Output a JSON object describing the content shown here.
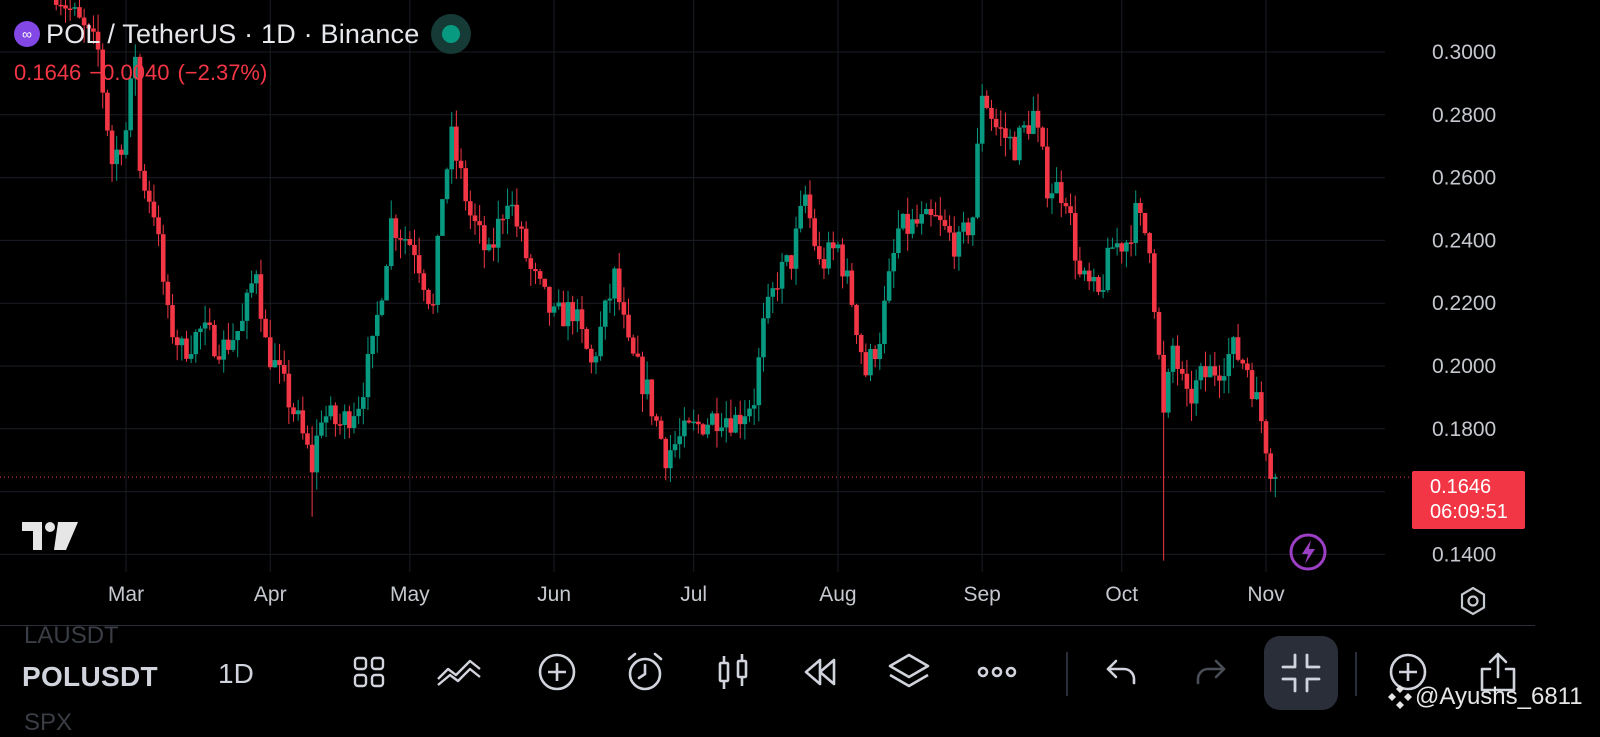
{
  "header": {
    "title": "POL / TetherUS · 1D · Binance",
    "last": "0.1646",
    "change": "−0.0040",
    "change_pct": "(−2.37%)"
  },
  "price_tag": {
    "price": "0.1646",
    "countdown": "06:09:51"
  },
  "colors": {
    "up": "#089981",
    "down": "#f23645",
    "bg": "#000000",
    "grid": "#1a1d24"
  },
  "toolbar": {
    "prev_symbol": "LAUSDT",
    "symbol": "POLUSDT",
    "next_symbol": "SPX",
    "interval": "1D",
    "buttons": [
      "grid-layout-icon",
      "indicators-icon",
      "add-icon",
      "alert-icon",
      "candle-style-icon",
      "replay-icon",
      "layers-icon",
      "more-icon",
      "undo-icon",
      "redo-icon",
      "collapse-fullscreen-icon",
      "zoom-in-icon",
      "share-icon"
    ]
  },
  "watermark": "@Ayushs_6811",
  "chart_data": {
    "type": "candlestick",
    "symbol": "POLUSDT",
    "interval": "1D",
    "y_ticks": [
      "0.3000",
      "0.2800",
      "0.2600",
      "0.2400",
      "0.2200",
      "0.2000",
      "0.1800",
      "0.1400"
    ],
    "ylim": [
      0.14,
      0.3
    ],
    "x_ticks": [
      "Mar",
      "Apr",
      "May",
      "Jun",
      "Jul",
      "Aug",
      "Sep",
      "Oct",
      "Nov"
    ],
    "last_price": 0.1646,
    "anchors": [
      [
        "02-15",
        0.32
      ],
      [
        "02-24",
        0.3
      ],
      [
        "02-27",
        0.265
      ],
      [
        "03-01",
        0.275
      ],
      [
        "03-03",
        0.3
      ],
      [
        "03-04",
        0.262
      ],
      [
        "03-07",
        0.25
      ],
      [
        "03-10",
        0.215
      ],
      [
        "03-13",
        0.205
      ],
      [
        "03-17",
        0.211
      ],
      [
        "03-22",
        0.206
      ],
      [
        "03-26",
        0.213
      ],
      [
        "03-29",
        0.232
      ],
      [
        "03-31",
        0.207
      ],
      [
        "04-04",
        0.193
      ],
      [
        "04-07",
        0.182
      ],
      [
        "04-10",
        0.168
      ],
      [
        "04-12",
        0.185
      ],
      [
        "04-16",
        0.181
      ],
      [
        "04-20",
        0.189
      ],
      [
        "04-23",
        0.205
      ],
      [
        "04-27",
        0.246
      ],
      [
        "05-02",
        0.238
      ],
      [
        "05-06",
        0.218
      ],
      [
        "05-08",
        0.255
      ],
      [
        "05-10",
        0.272
      ],
      [
        "05-14",
        0.248
      ],
      [
        "05-18",
        0.234
      ],
      [
        "05-22",
        0.255
      ],
      [
        "05-27",
        0.23
      ],
      [
        "06-01",
        0.215
      ],
      [
        "06-05",
        0.218
      ],
      [
        "06-09",
        0.2
      ],
      [
        "06-14",
        0.228
      ],
      [
        "06-17",
        0.205
      ],
      [
        "06-21",
        0.192
      ],
      [
        "06-25",
        0.172
      ],
      [
        "06-29",
        0.178
      ],
      [
        "07-03",
        0.182
      ],
      [
        "07-07",
        0.185
      ],
      [
        "07-10",
        0.183
      ],
      [
        "07-14",
        0.19
      ],
      [
        "07-16",
        0.212
      ],
      [
        "07-19",
        0.228
      ],
      [
        "07-22",
        0.234
      ],
      [
        "07-25",
        0.254
      ],
      [
        "07-28",
        0.232
      ],
      [
        "08-01",
        0.238
      ],
      [
        "08-04",
        0.221
      ],
      [
        "08-07",
        0.198
      ],
      [
        "08-10",
        0.21
      ],
      [
        "08-14",
        0.243
      ],
      [
        "08-18",
        0.245
      ],
      [
        "08-22",
        0.246
      ],
      [
        "08-27",
        0.238
      ],
      [
        "08-30",
        0.248
      ],
      [
        "09-01",
        0.288
      ],
      [
        "09-04",
        0.276
      ],
      [
        "09-08",
        0.27
      ],
      [
        "09-12",
        0.28
      ],
      [
        "09-15",
        0.258
      ],
      [
        "09-19",
        0.255
      ],
      [
        "09-22",
        0.228
      ],
      [
        "09-26",
        0.222
      ],
      [
        "09-29",
        0.238
      ],
      [
        "10-02",
        0.24
      ],
      [
        "10-04",
        0.248
      ],
      [
        "10-07",
        0.24
      ],
      [
        "10-10",
        0.183
      ],
      [
        "10-12",
        0.206
      ],
      [
        "10-15",
        0.188
      ],
      [
        "10-18",
        0.196
      ],
      [
        "10-22",
        0.2
      ],
      [
        "10-25",
        0.205
      ],
      [
        "10-28",
        0.2
      ],
      [
        "10-31",
        0.183
      ],
      [
        "11-02",
        0.1686
      ],
      [
        "11-03",
        0.1646
      ]
    ]
  }
}
